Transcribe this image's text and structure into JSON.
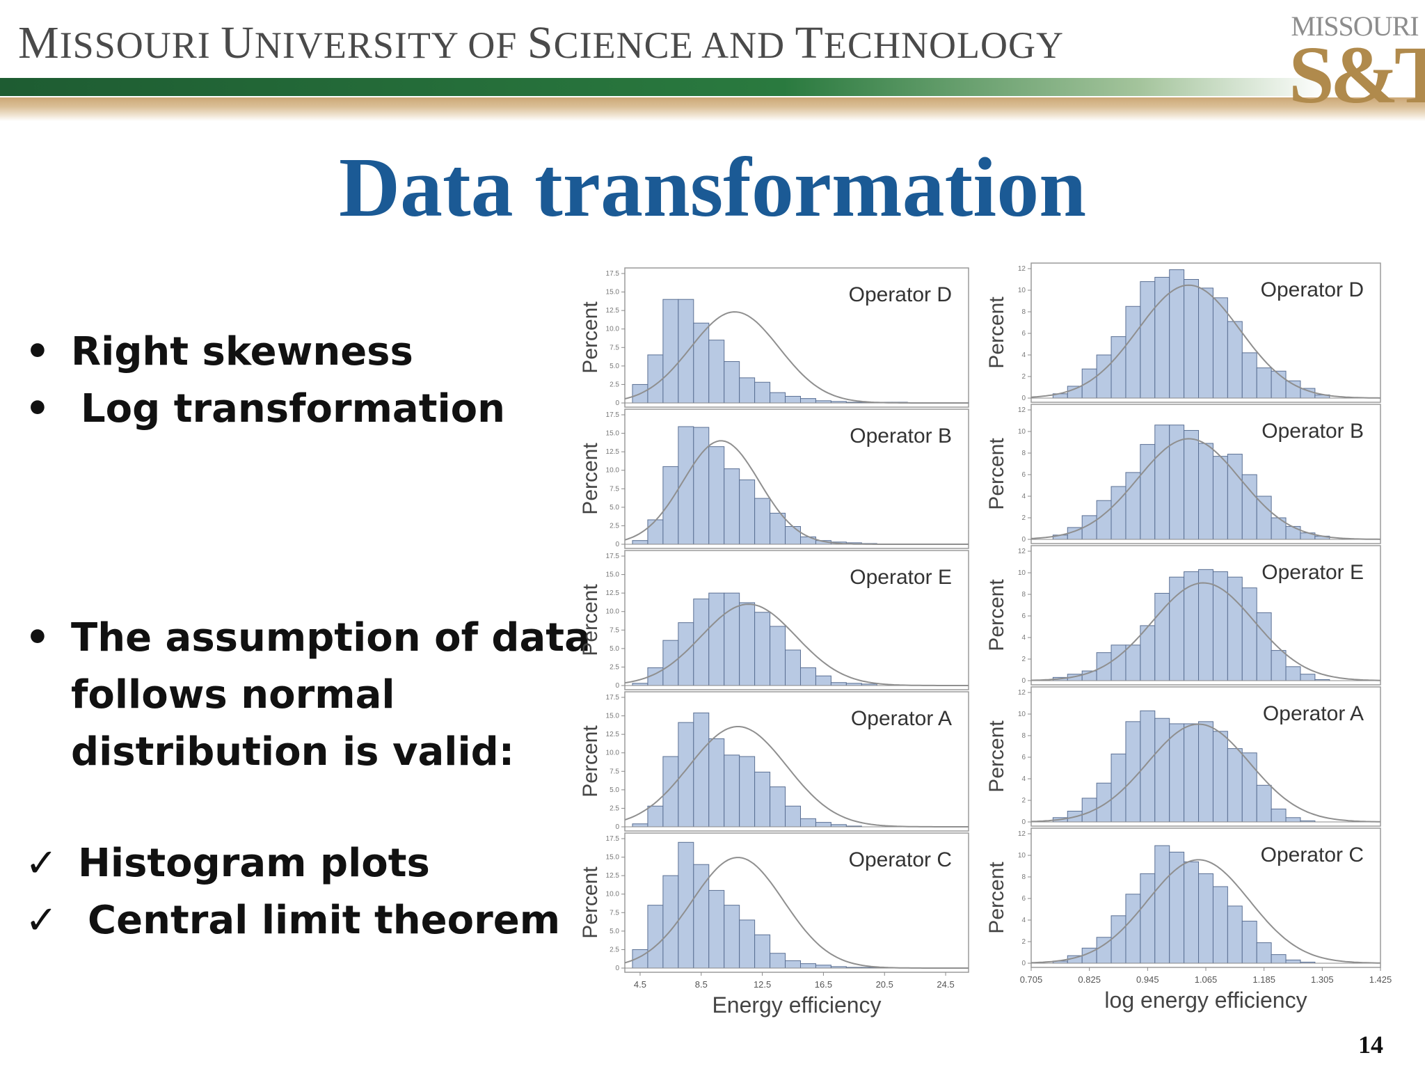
{
  "header": {
    "university": "MISSOURI UNIVERSITY OF SCIENCE AND TECHNOLOGY",
    "university_parts": [
      {
        "big": "M",
        "small": "ISSOURI "
      },
      {
        "big": "U",
        "small": "NIVERSITY "
      },
      {
        "big": "",
        "small": "OF "
      },
      {
        "big": "S",
        "small": "CIENCE "
      },
      {
        "big": "",
        "small": "AND "
      },
      {
        "big": "T",
        "small": "ECHNOLOGY"
      }
    ],
    "logo_top": "MISSOURI",
    "logo_main": "S&T",
    "colors": {
      "green": "#1e5c32",
      "gold": "#c9a26e",
      "title_blue": "#1b5a95"
    }
  },
  "slide": {
    "title": "Data transformation",
    "bullets_top": [
      "Right skewness",
      "Log transformation"
    ],
    "bullets_mid": [
      "The assumption of data",
      "follows normal",
      "distribution is valid:"
    ],
    "checks": [
      "Histogram plots",
      "Central limit theorem"
    ],
    "bullet_glyph": "•",
    "check_glyph": "✓",
    "page_number": "14"
  },
  "chart_data": [
    {
      "type": "bar",
      "panel": "left",
      "xlabel": "Energy efficiency",
      "ylabel": "Percent",
      "x_ticks": [
        "4.5",
        "8.5",
        "12.5",
        "16.5",
        "20.5",
        "24.5"
      ],
      "xlim": [
        3.5,
        26
      ],
      "bin_start": 4.5,
      "bin_width": 1,
      "overlay": "normal fit curve",
      "series": [
        {
          "name": "Operator D",
          "y_ticks": [
            "17.5",
            "15.0",
            "12.5",
            "10.0",
            "7.5",
            "5.0",
            "2.5",
            "0"
          ],
          "ylim": [
            0,
            17.5
          ],
          "values": [
            2.5,
            6.5,
            14,
            14,
            10.8,
            8.5,
            5.6,
            3.4,
            2.8,
            1.4,
            0.9,
            0.6,
            0.3,
            0.2,
            0.1,
            0.1,
            0.1,
            0.1,
            0.05,
            0.05,
            0.05,
            0.05
          ],
          "mean": 10.7,
          "sd": 2.9
        },
        {
          "name": "Operator B",
          "y_ticks": [
            "17.5",
            "15.0",
            "12.5",
            "10.0",
            "7.5",
            "5.0",
            "2.5",
            "0"
          ],
          "ylim": [
            0,
            17.5
          ],
          "values": [
            0.5,
            3.3,
            10.5,
            15.9,
            15.8,
            13.2,
            10.2,
            8.7,
            6.2,
            4.2,
            2.4,
            1,
            0.5,
            0.3,
            0.2,
            0.1
          ],
          "mean": 9.8,
          "sd": 2.5
        },
        {
          "name": "Operator E",
          "y_ticks": [
            "17.5",
            "15.0",
            "12.5",
            "10.0",
            "7.5",
            "5.0",
            "2.5",
            "0"
          ],
          "ylim": [
            0,
            17.5
          ],
          "values": [
            0.3,
            2.4,
            6.1,
            8.5,
            11.7,
            12.5,
            12.5,
            11.2,
            9.9,
            8,
            4.8,
            2.4,
            1.3,
            0.4,
            0.3,
            0.2
          ],
          "mean": 11.6,
          "sd": 3.1
        },
        {
          "name": "Operator A",
          "y_ticks": [
            "17.5",
            "15.0",
            "12.5",
            "10.0",
            "7.5",
            "5.0",
            "2.5",
            "0"
          ],
          "ylim": [
            0,
            17.5
          ],
          "values": [
            0.4,
            2.8,
            9.5,
            14.1,
            15.4,
            11.9,
            9.7,
            9.5,
            7.4,
            5.4,
            2.8,
            1.1,
            0.6,
            0.3,
            0.1
          ],
          "mean": 10.9,
          "sd": 3.2
        },
        {
          "name": "Operator C",
          "y_ticks": [
            "17.5",
            "15.0",
            "12.5",
            "10.0",
            "7.5",
            "5.0",
            "2.5",
            "0"
          ],
          "ylim": [
            0,
            17.5
          ],
          "values": [
            2.5,
            8.5,
            12.5,
            17,
            14,
            10.5,
            8.5,
            6.5,
            4.5,
            2,
            1,
            0.6,
            0.4,
            0.2,
            0.1,
            0.1
          ],
          "mean": 10.9,
          "sd": 3
        }
      ]
    },
    {
      "type": "bar",
      "panel": "right",
      "xlabel": "log energy efficiency",
      "ylabel": "Percent",
      "x_ticks": [
        "0.705",
        "0.825",
        "0.945",
        "1.065",
        "1.185",
        "1.305",
        "1.425"
      ],
      "xlim": [
        0.705,
        1.425
      ],
      "bin_start": 0.765,
      "bin_width": 0.03,
      "overlay": "normal fit curve",
      "series": [
        {
          "name": "Operator D",
          "y_ticks": [
            "12",
            "10",
            "8",
            "6",
            "4",
            "2",
            "0"
          ],
          "ylim": [
            0,
            12
          ],
          "values": [
            0.4,
            1.1,
            2.7,
            4,
            5.7,
            8.5,
            10.8,
            11.2,
            11.9,
            11,
            10.2,
            9.3,
            7.1,
            4.2,
            2.8,
            2.5,
            1.6,
            0.9,
            0.3
          ],
          "mean": 1.03,
          "sd": 0.105
        },
        {
          "name": "Operator B",
          "y_ticks": [
            "12",
            "10",
            "8",
            "6",
            "4",
            "2",
            "0"
          ],
          "ylim": [
            0,
            12
          ],
          "values": [
            0.4,
            1.1,
            2.2,
            3.6,
            4.9,
            6.2,
            8.8,
            10.6,
            10.6,
            10.1,
            8.9,
            7.7,
            7.9,
            6,
            4,
            2,
            1.2,
            0.6,
            0.3
          ],
          "mean": 1.03,
          "sd": 0.105
        },
        {
          "name": "Operator E",
          "y_ticks": [
            "12",
            "10",
            "8",
            "6",
            "4",
            "2",
            "0"
          ],
          "ylim": [
            0,
            12
          ],
          "values": [
            0.3,
            0.6,
            0.9,
            2.6,
            3.3,
            3.3,
            5.1,
            8.1,
            9.6,
            10.1,
            10.3,
            10.1,
            9.6,
            8.6,
            6.3,
            2.8,
            1.3,
            0.6,
            0.1
          ],
          "mean": 1.06,
          "sd": 0.105
        },
        {
          "name": "Operator A",
          "y_ticks": [
            "12",
            "10",
            "8",
            "6",
            "4",
            "2",
            "0"
          ],
          "ylim": [
            0,
            12
          ],
          "values": [
            0.4,
            1,
            2.2,
            3.6,
            6.3,
            9.3,
            10.3,
            9.6,
            9.1,
            9.1,
            9.3,
            8.4,
            6.8,
            6.4,
            3.4,
            1.2,
            0.4,
            0.1
          ],
          "mean": 1.05,
          "sd": 0.105
        },
        {
          "name": "Operator C",
          "y_ticks": [
            "12",
            "10",
            "8",
            "6",
            "4",
            "2",
            "0"
          ],
          "ylim": [
            0,
            12
          ],
          "values": [
            0.2,
            0.7,
            1.4,
            2.4,
            4.4,
            6.4,
            8.3,
            10.9,
            10.3,
            9.4,
            8.3,
            7.1,
            5.3,
            3.9,
            1.9,
            0.8,
            0.3,
            0.1
          ],
          "mean": 1.05,
          "sd": 0.105
        }
      ]
    }
  ]
}
